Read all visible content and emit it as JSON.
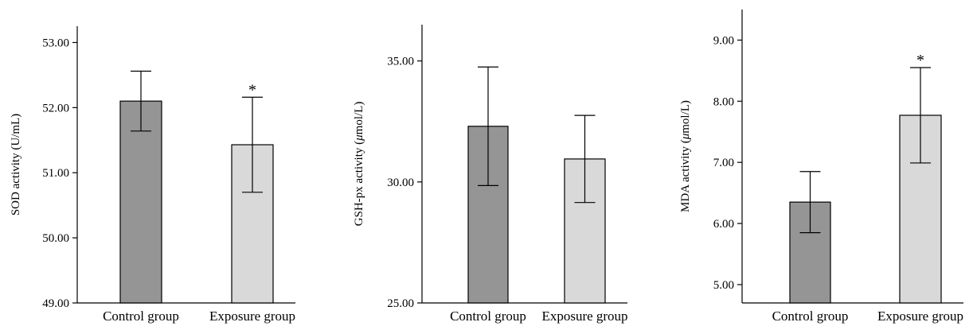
{
  "colors": {
    "control": "#959595",
    "exposure": "#d9d9d9"
  },
  "chart_data": [
    {
      "type": "bar",
      "categories": [
        "Control group",
        "Exposure group"
      ],
      "values": [
        52.1,
        51.43
      ],
      "error": [
        0.46,
        0.73
      ],
      "significance": [
        "",
        "*"
      ],
      "ylabel": "SOD activity (U/mL)",
      "ylim": [
        49.0,
        53.25
      ],
      "yticks": [
        "49.00",
        "50.00",
        "51.00",
        "52.00",
        "53.00"
      ],
      "ytick_values": [
        49,
        50,
        51,
        52,
        53
      ],
      "grid": false
    },
    {
      "type": "bar",
      "categories": [
        "Control group",
        "Exposure group"
      ],
      "values": [
        32.3,
        30.95
      ],
      "error": [
        2.45,
        1.8
      ],
      "significance": [
        "",
        ""
      ],
      "ylabel_prefix": "GSH-px activity (",
      "ylabel_mu": "μ",
      "ylabel_suffix": "mol/L)",
      "ylim": [
        25.0,
        36.5
      ],
      "yticks": [
        "25.00",
        "30.00",
        "35.00"
      ],
      "ytick_values": [
        25,
        30,
        35
      ],
      "grid": false
    },
    {
      "type": "bar",
      "categories": [
        "Control group",
        "Exposure group"
      ],
      "values": [
        6.35,
        7.77
      ],
      "error": [
        0.5,
        0.78
      ],
      "significance": [
        "",
        "*"
      ],
      "ylabel_prefix": "MDA activity (",
      "ylabel_mu": "μ",
      "ylabel_suffix": "mol/L)",
      "ylim": [
        4.7,
        9.5
      ],
      "yticks": [
        "5.00",
        "6.00",
        "7.00",
        "8.00",
        "9.00"
      ],
      "ytick_values": [
        5,
        6,
        7,
        8,
        9
      ],
      "grid": false
    }
  ]
}
